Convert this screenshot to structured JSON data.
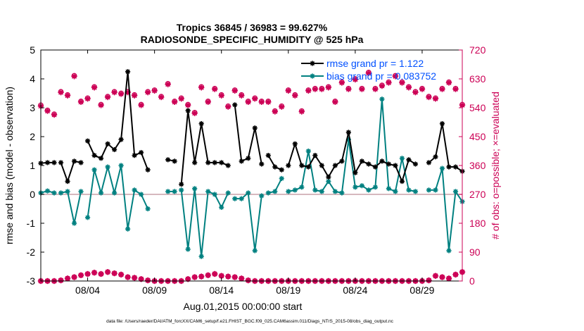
{
  "chart_data": {
    "type": "line",
    "title": "Tropics 36845 / 36983 = 99.627%",
    "subtitle": "RADIOSONDE_SPECIFIC_HUMIDITY @ 525 hPa",
    "xlabel": "Aug.01,2015 00:00:00 start",
    "ylabel": "rmse and bias (model - observation)",
    "y2label": "# of obs: o=possible; ×=evaluated",
    "footnote": "data file: /Users/raeder/DAI/ATM_forcXX/CAM6_setup/f.e21.FHIST_BGC.f09_025.CAM6assim.011/Diags_NTrS_2015-08/obs_diag_output.nc",
    "xlim": [
      0.5,
      32
    ],
    "ylim": [
      -3,
      5
    ],
    "y2lim": [
      0,
      720
    ],
    "xticks": [
      4,
      9,
      14,
      19,
      24,
      29
    ],
    "xtick_labels": [
      "08/04",
      "08/09",
      "08/14",
      "08/19",
      "08/24",
      "08/29"
    ],
    "yticks": [
      -3,
      -2,
      -1,
      0,
      1,
      2,
      3,
      4,
      5
    ],
    "y2ticks": [
      0,
      90,
      180,
      270,
      360,
      450,
      540,
      630,
      720
    ],
    "legend_position": "top-right",
    "colors": {
      "rmse": "#000000",
      "bias": "#008080",
      "obs": "#cc0055",
      "zero_line": "#c8a0a8",
      "y2axis": "#cc0055"
    },
    "series": [
      {
        "name": "rmse",
        "legend": "rmse grand pr = 1.122",
        "segments": [
          {
            "x": [
              0.5,
              1,
              1.5
            ],
            "y": [
              1.08,
              1.1,
              1.1
            ]
          },
          {
            "x": [
              2,
              2.5,
              3,
              3.5
            ],
            "y": [
              1.1,
              0.45,
              1.15,
              1.1
            ]
          },
          {
            "x": [
              4,
              4.5,
              5,
              5.5,
              6,
              6.5,
              7,
              7.5,
              8,
              8.5
            ],
            "y": [
              1.85,
              1.35,
              1.25,
              1.75,
              1.55,
              1.9,
              4.25,
              1.35,
              1.45,
              0.85
            ]
          },
          {
            "x": [
              10,
              10.5
            ],
            "y": [
              1.2,
              1.15
            ]
          },
          {
            "x": [
              11,
              11.5,
              12,
              12.5,
              13,
              13.5,
              14,
              14.5
            ],
            "y": [
              0.35,
              2.9,
              1.1,
              2.45,
              1.1,
              1.1,
              1.1,
              1.0
            ]
          },
          {
            "x": [
              15,
              15.5,
              16,
              16.5,
              17
            ],
            "y": [
              3.1,
              1.15,
              1.25,
              2.3,
              1.05
            ]
          },
          {
            "x": [
              17.5,
              18,
              18.5
            ],
            "y": [
              1.35,
              0.95,
              0.85
            ]
          },
          {
            "x": [
              19,
              19.5,
              20,
              20.5,
              21,
              21.5,
              22,
              22.5,
              23,
              23.5,
              24,
              24.5,
              25,
              25.5,
              26,
              26.5,
              27,
              27.5,
              28,
              28.5
            ],
            "y": [
              1.0,
              1.75,
              1.0,
              0.95,
              1.35,
              1.0,
              0.6,
              1.0,
              1.15,
              2.15,
              0.75,
              1.15,
              1.05,
              0.95,
              1.15,
              1.05,
              1.0,
              0.45,
              1.2,
              1.05
            ]
          },
          {
            "x": [
              29.5,
              30,
              30.5,
              31,
              31.5,
              32
            ],
            "y": [
              1.1,
              1.3,
              2.45,
              0.95,
              0.95,
              0.8
            ]
          }
        ]
      },
      {
        "name": "bias",
        "legend": "bias grand pr = 0.083752",
        "segments": [
          {
            "x": [
              0.5,
              1,
              1.5
            ],
            "y": [
              0.05,
              0.12,
              0.05
            ]
          },
          {
            "x": [
              2,
              2.5,
              3,
              3.5
            ],
            "y": [
              0.05,
              0.1,
              -1.0,
              0.1
            ]
          },
          {
            "x": [
              4,
              4.5,
              5,
              5.5,
              6,
              6.5,
              7,
              7.5,
              8,
              8.5
            ],
            "y": [
              -0.8,
              0.85,
              0.05,
              0.95,
              0.05,
              1.0,
              -1.2,
              0.15,
              0.0,
              -0.5
            ]
          },
          {
            "x": [
              10,
              10.5
            ],
            "y": [
              0.1,
              0.1
            ]
          },
          {
            "x": [
              11,
              11.5,
              12,
              12.5,
              13,
              13.5,
              14,
              14.5
            ],
            "y": [
              0.15,
              -1.9,
              0.2,
              -2.15,
              0.1,
              0.0,
              -0.45,
              0.05
            ]
          },
          {
            "x": [
              15,
              15.5,
              16,
              16.5,
              17
            ],
            "y": [
              -0.15,
              -0.15,
              0.05,
              -1.95,
              -0.05
            ]
          },
          {
            "x": [
              17.5,
              18,
              18.5
            ],
            "y": [
              0.05,
              0.1,
              0.55
            ]
          },
          {
            "x": [
              19,
              19.5,
              20,
              20.5,
              21,
              21.5,
              22,
              22.5,
              23,
              23.5,
              24,
              24.5,
              25,
              25.5,
              26,
              26.5,
              27,
              27.5,
              28,
              28.5
            ],
            "y": [
              0.1,
              0.15,
              0.25,
              1.5,
              0.15,
              0.1,
              0.45,
              0.1,
              0.05,
              1.9,
              0.25,
              0.3,
              0.15,
              0.25,
              3.3,
              0.2,
              0.1,
              1.25,
              0.15,
              0.1
            ]
          },
          {
            "x": [
              29.5,
              30,
              30.5,
              31,
              31.5,
              32
            ],
            "y": [
              0.15,
              0.15,
              0.9,
              -1.95,
              0.1,
              -0.25
            ]
          }
        ]
      },
      {
        "name": "obs_possible",
        "axis": "right",
        "marker": "o",
        "x": [
          0.5,
          1,
          1.5,
          2,
          2.5,
          3,
          3.5,
          4,
          4.5,
          5,
          5.5,
          6,
          6.5,
          7,
          7.5,
          8,
          8.5,
          9,
          9.5,
          10,
          10.5,
          11,
          11.5,
          12,
          12.5,
          13,
          13.5,
          14,
          14.5,
          15,
          15.5,
          16,
          16.5,
          17,
          17.5,
          18,
          18.5,
          19,
          19.5,
          20,
          20.5,
          21,
          21.5,
          22,
          22.5,
          23,
          23.5,
          24,
          24.5,
          25,
          25.5,
          26,
          26.5,
          27,
          27.5,
          28,
          28.5,
          29,
          29.5,
          30,
          30.5,
          31,
          31.5,
          32
        ],
        "y": [
          548,
          532,
          520,
          590,
          580,
          640,
          560,
          570,
          605,
          550,
          575,
          590,
          585,
          590,
          580,
          550,
          590,
          595,
          575,
          615,
          560,
          570,
          550,
          525,
          605,
          560,
          600,
          580,
          545,
          595,
          580,
          560,
          570,
          560,
          560,
          530,
          545,
          595,
          580,
          530,
          595,
          600,
          600,
          605,
          560,
          620,
          600,
          630,
          600,
          650,
          600,
          610,
          620,
          640,
          620,
          605,
          590,
          600,
          575,
          570,
          600,
          620,
          600,
          550
        ]
      },
      {
        "name": "obs_evaluated",
        "axis": "right",
        "marker": "x",
        "x": [
          0.5,
          1,
          1.5,
          2,
          2.5,
          3,
          3.5,
          4,
          4.5,
          5,
          5.5,
          6,
          6.5,
          7,
          7.5,
          8,
          8.5,
          9,
          9.5,
          10,
          10.5,
          11,
          11.5,
          12,
          12.5,
          13,
          13.5,
          14,
          14.5,
          15,
          15.5,
          16,
          16.5,
          17,
          17.5,
          18,
          18.5,
          19,
          19.5,
          20,
          20.5,
          21,
          21.5,
          22,
          22.5,
          23,
          23.5,
          24,
          24.5,
          25,
          25.5,
          26,
          26.5,
          27,
          27.5,
          28,
          28.5,
          29,
          29.5,
          30,
          30.5,
          31,
          31.5,
          32
        ],
        "y": [
          545,
          530,
          518,
          588,
          578,
          638,
          558,
          568,
          603,
          548,
          573,
          588,
          583,
          588,
          578,
          548,
          588,
          593,
          573,
          613,
          558,
          568,
          548,
          523,
          603,
          558,
          598,
          578,
          543,
          593,
          578,
          558,
          568,
          558,
          558,
          528,
          543,
          593,
          578,
          528,
          593,
          598,
          598,
          603,
          558,
          618,
          598,
          628,
          598,
          648,
          598,
          608,
          618,
          638,
          618,
          603,
          588,
          598,
          573,
          568,
          598,
          618,
          598,
          548
        ]
      },
      {
        "name": "obs_low_possible",
        "axis": "right",
        "marker": "o",
        "x": [
          0.5,
          1,
          1.5,
          2,
          2.5,
          3,
          3.5,
          4,
          4.5,
          5,
          5.5,
          6,
          6.5,
          7,
          7.5,
          8,
          8.5,
          9,
          9.5,
          10,
          10.5,
          11,
          11.5,
          12,
          12.5,
          13,
          13.5,
          14,
          14.5,
          15,
          15.5,
          16,
          16.5,
          17,
          17.5,
          18,
          18.5,
          19,
          19.5,
          20,
          20.5,
          21,
          21.5,
          22,
          22.5,
          23,
          23.5,
          24,
          24.5,
          25,
          25.5,
          26,
          26.5,
          27,
          27.5,
          28,
          28.5,
          29,
          29.5,
          30,
          30.5,
          31,
          31.5,
          32
        ],
        "y": [
          0,
          0,
          0,
          2,
          8,
          12,
          18,
          22,
          26,
          22,
          28,
          24,
          20,
          12,
          10,
          6,
          2,
          0,
          0,
          0,
          0,
          0,
          6,
          12,
          14,
          18,
          22,
          16,
          14,
          12,
          8,
          2,
          0,
          0,
          0,
          0,
          0,
          0,
          0,
          0,
          0,
          0,
          0,
          0,
          0,
          0,
          0,
          0,
          0,
          0,
          0,
          0,
          0,
          0,
          0,
          0,
          0,
          0,
          2,
          16,
          12,
          8,
          20,
          28
        ]
      },
      {
        "name": "obs_low_evaluated",
        "axis": "right",
        "marker": "x",
        "x": [
          0.5,
          1,
          1.5,
          2,
          2.5,
          3,
          3.5,
          4,
          4.5,
          5,
          5.5,
          6,
          6.5,
          7,
          7.5,
          8,
          8.5,
          9,
          9.5,
          10,
          10.5,
          11,
          11.5,
          12,
          12.5,
          13,
          13.5,
          14,
          14.5,
          15,
          15.5,
          16,
          16.5,
          17,
          17.5,
          18,
          18.5,
          19,
          19.5,
          20,
          20.5,
          21,
          21.5,
          22,
          22.5,
          23,
          23.5,
          24,
          24.5,
          25,
          25.5,
          26,
          26.5,
          27,
          27.5,
          28,
          28.5,
          29,
          29.5,
          30,
          30.5,
          31,
          31.5,
          32
        ],
        "y": [
          0,
          0,
          0,
          2,
          8,
          12,
          18,
          22,
          26,
          22,
          28,
          24,
          20,
          12,
          10,
          6,
          2,
          0,
          0,
          0,
          0,
          0,
          6,
          12,
          14,
          18,
          22,
          16,
          14,
          12,
          8,
          2,
          0,
          0,
          0,
          0,
          0,
          0,
          0,
          0,
          0,
          0,
          0,
          0,
          0,
          0,
          0,
          0,
          0,
          0,
          0,
          0,
          0,
          0,
          0,
          0,
          0,
          0,
          2,
          16,
          12,
          8,
          20,
          28
        ]
      }
    ]
  }
}
